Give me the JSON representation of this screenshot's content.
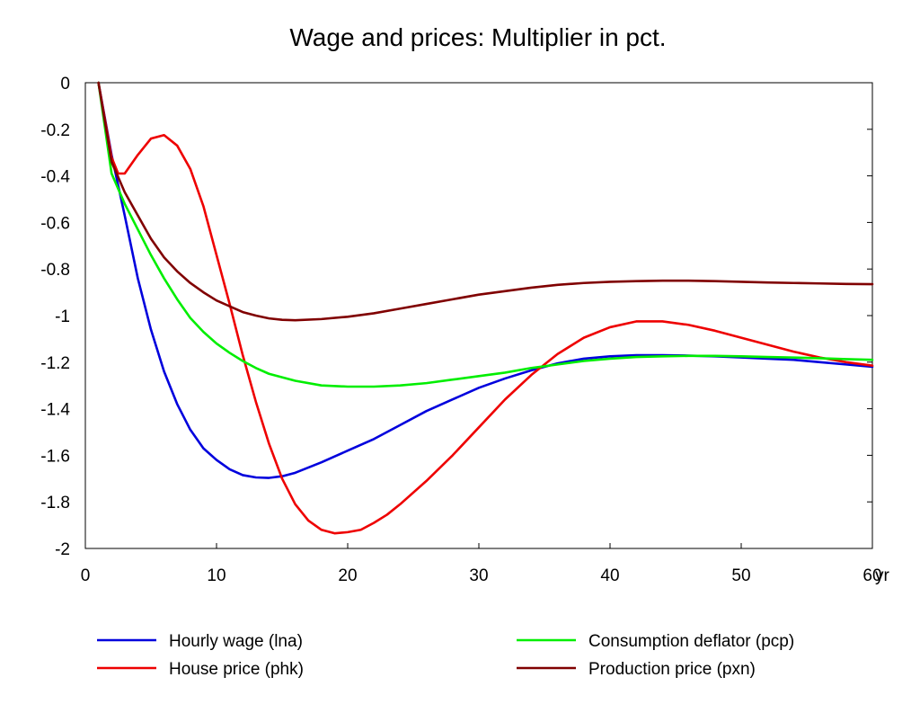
{
  "chart_data": {
    "type": "line",
    "title": "Wage and prices: Multiplier in pct.",
    "xlabel": "",
    "ylabel": "",
    "x_unit_label": "yr",
    "xlim": [
      0,
      60
    ],
    "ylim": [
      -2,
      0
    ],
    "x_ticks": [
      0,
      10,
      20,
      30,
      40,
      50,
      60
    ],
    "x_tick_labels": [
      "0",
      "10",
      "20",
      "30",
      "40",
      "50",
      "60"
    ],
    "y_ticks": [
      0,
      -0.2,
      -0.4,
      -0.6,
      -0.8,
      -1,
      -1.2,
      -1.4,
      -1.6,
      -1.8,
      -2
    ],
    "y_tick_labels": [
      "0",
      "-0.2",
      "-0.4",
      "-0.6",
      "-0.8",
      "-1",
      "-1.2",
      "-1.4",
      "-1.6",
      "-1.8",
      "-2"
    ],
    "grid": false,
    "legend_position": "bottom",
    "series": [
      {
        "name": "Hourly wage (lna)",
        "color": "#0000dd",
        "x": [
          1,
          2,
          3,
          4,
          5,
          6,
          7,
          8,
          9,
          10,
          11,
          12,
          13,
          14,
          15,
          16,
          18,
          20,
          22,
          24,
          26,
          28,
          30,
          32,
          34,
          36,
          38,
          40,
          42,
          44,
          46,
          48,
          50,
          52,
          54,
          56,
          58,
          60
        ],
        "y": [
          0,
          -0.31,
          -0.57,
          -0.84,
          -1.06,
          -1.24,
          -1.38,
          -1.49,
          -1.57,
          -1.62,
          -1.66,
          -1.685,
          -1.695,
          -1.697,
          -1.69,
          -1.675,
          -1.63,
          -1.58,
          -1.53,
          -1.47,
          -1.41,
          -1.36,
          -1.31,
          -1.27,
          -1.235,
          -1.205,
          -1.185,
          -1.175,
          -1.17,
          -1.17,
          -1.172,
          -1.175,
          -1.18,
          -1.185,
          -1.19,
          -1.2,
          -1.21,
          -1.22
        ]
      },
      {
        "name": "House price (phk)",
        "color": "#ee0000",
        "x": [
          1,
          2,
          2.5,
          3,
          4,
          5,
          6,
          7,
          8,
          9,
          10,
          11,
          12,
          13,
          14,
          15,
          16,
          17,
          18,
          19,
          20,
          21,
          22,
          23,
          24,
          26,
          28,
          30,
          32,
          34,
          36,
          38,
          40,
          42,
          44,
          46,
          48,
          50,
          52,
          54,
          56,
          58,
          60
        ],
        "y": [
          0,
          -0.32,
          -0.39,
          -0.39,
          -0.31,
          -0.24,
          -0.225,
          -0.27,
          -0.37,
          -0.53,
          -0.74,
          -0.95,
          -1.17,
          -1.37,
          -1.55,
          -1.7,
          -1.81,
          -1.88,
          -1.92,
          -1.935,
          -1.93,
          -1.92,
          -1.89,
          -1.855,
          -1.81,
          -1.71,
          -1.6,
          -1.48,
          -1.36,
          -1.255,
          -1.165,
          -1.095,
          -1.05,
          -1.025,
          -1.025,
          -1.04,
          -1.065,
          -1.095,
          -1.125,
          -1.155,
          -1.18,
          -1.2,
          -1.215
        ]
      },
      {
        "name": "Consumption deflator (pcp)",
        "color": "#00ee00",
        "x": [
          1,
          2,
          3,
          4,
          5,
          6,
          7,
          8,
          9,
          10,
          11,
          12,
          13,
          14,
          16,
          18,
          20,
          22,
          24,
          26,
          28,
          30,
          32,
          34,
          36,
          38,
          40,
          42,
          44,
          46,
          48,
          50,
          52,
          54,
          56,
          58,
          60
        ],
        "y": [
          0,
          -0.39,
          -0.52,
          -0.63,
          -0.74,
          -0.84,
          -0.93,
          -1.01,
          -1.07,
          -1.12,
          -1.16,
          -1.195,
          -1.225,
          -1.25,
          -1.28,
          -1.3,
          -1.305,
          -1.305,
          -1.3,
          -1.29,
          -1.275,
          -1.26,
          -1.245,
          -1.225,
          -1.21,
          -1.195,
          -1.185,
          -1.178,
          -1.175,
          -1.173,
          -1.173,
          -1.175,
          -1.178,
          -1.18,
          -1.183,
          -1.187,
          -1.19
        ]
      },
      {
        "name": "Production price (pxn)",
        "color": "#800000",
        "x": [
          1,
          2,
          3,
          4,
          5,
          6,
          7,
          8,
          9,
          10,
          11,
          12,
          13,
          14,
          15,
          16,
          18,
          20,
          22,
          24,
          26,
          28,
          30,
          32,
          34,
          36,
          38,
          40,
          42,
          44,
          46,
          48,
          50,
          52,
          54,
          56,
          58,
          60
        ],
        "y": [
          0,
          -0.34,
          -0.47,
          -0.57,
          -0.67,
          -0.75,
          -0.81,
          -0.86,
          -0.9,
          -0.935,
          -0.96,
          -0.985,
          -1.0,
          -1.012,
          -1.018,
          -1.02,
          -1.015,
          -1.005,
          -0.99,
          -0.97,
          -0.95,
          -0.93,
          -0.91,
          -0.895,
          -0.88,
          -0.868,
          -0.86,
          -0.855,
          -0.852,
          -0.85,
          -0.85,
          -0.852,
          -0.855,
          -0.858,
          -0.86,
          -0.862,
          -0.864,
          -0.865
        ]
      }
    ]
  }
}
